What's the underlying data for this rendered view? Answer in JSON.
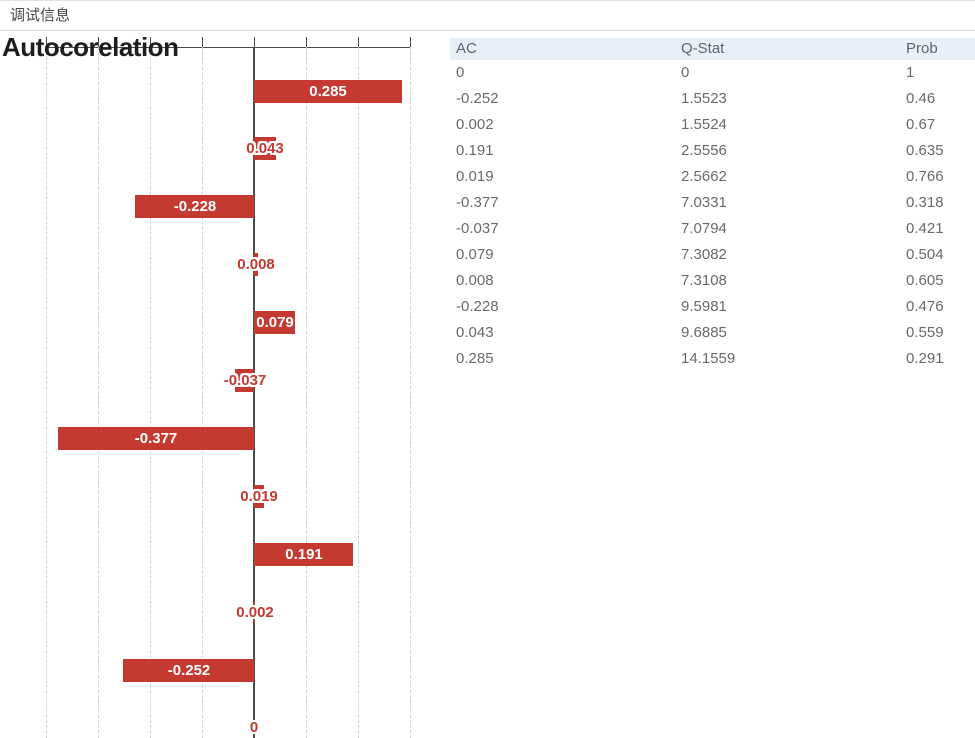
{
  "window": {
    "title": "调试信息"
  },
  "colors": {
    "bar": "#c43a31",
    "label_outside_text": "#c43a31",
    "table_header_bg": "#e9eff9",
    "axis": "#4d4d4d"
  },
  "chart_data": {
    "type": "bar",
    "orientation": "horizontal",
    "title": "Autocorelation",
    "xlim": [
      -0.4,
      0.3
    ],
    "gridline_step": 0.1,
    "grid": true,
    "values_top_to_bottom": [
      0.285,
      0.043,
      -0.228,
      0.008,
      0.079,
      -0.037,
      -0.377,
      0.019,
      0.191,
      0.002,
      -0.252,
      0
    ],
    "labels_top_to_bottom": [
      "0.285",
      "0.043",
      "-0.228",
      "0.008",
      "0.079",
      "-0.037",
      "-0.377",
      "0.019",
      "0.191",
      "0.002",
      "-0.252",
      "0"
    ]
  },
  "table": {
    "columns": [
      "AC",
      "Q-Stat",
      "Prob"
    ],
    "rows": [
      [
        "0",
        "0",
        "1"
      ],
      [
        "-0.252",
        "1.5523",
        "0.46"
      ],
      [
        "0.002",
        "1.5524",
        "0.67"
      ],
      [
        "0.191",
        "2.5556",
        "0.635"
      ],
      [
        "0.019",
        "2.5662",
        "0.766"
      ],
      [
        "-0.377",
        "7.0331",
        "0.318"
      ],
      [
        "-0.037",
        "7.0794",
        "0.421"
      ],
      [
        "0.079",
        "7.3082",
        "0.504"
      ],
      [
        "0.008",
        "7.3108",
        "0.605"
      ],
      [
        "-0.228",
        "9.5981",
        "0.476"
      ],
      [
        "0.043",
        "9.6885",
        "0.559"
      ],
      [
        "0.285",
        "14.1559",
        "0.291"
      ]
    ]
  }
}
